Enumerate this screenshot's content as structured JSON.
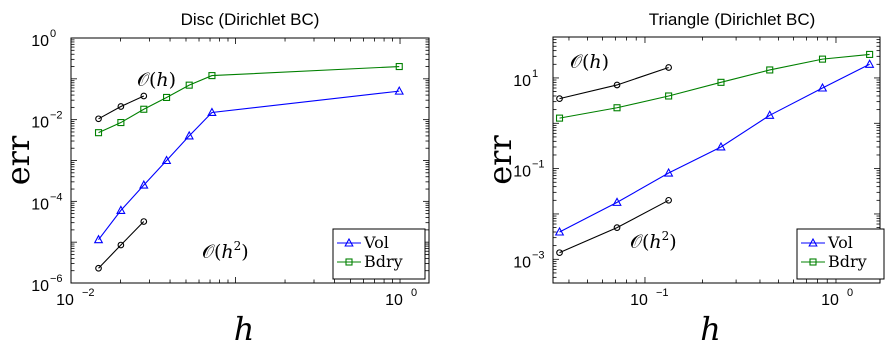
{
  "chart_data": [
    {
      "type": "line",
      "title": "Disc (Dirichlet BC)",
      "xlabel": "h",
      "ylabel": "err",
      "xscale": "log",
      "yscale": "log",
      "xlim": [
        0.01,
        1.5
      ],
      "ylim": [
        1e-06,
        1
      ],
      "x_ticks": [
        {
          "value": 0.01,
          "base": "10",
          "exp": "−2"
        },
        {
          "value": 1,
          "base": "10",
          "exp": "0"
        }
      ],
      "y_ticks": [
        {
          "value": 1e-06,
          "base": "10",
          "exp": "−6"
        },
        {
          "value": 0.0001,
          "base": "10",
          "exp": "−4"
        },
        {
          "value": 0.01,
          "base": "10",
          "exp": "−2"
        },
        {
          "value": 1,
          "base": "10",
          "exp": "0"
        }
      ],
      "series": [
        {
          "name": "Vol",
          "color": "#0000ff",
          "marker": "triangle",
          "x": [
            0.0147,
            0.0201,
            0.0277,
            0.0381,
            0.0523,
            0.0719,
            0.989
          ],
          "y": [
            1.15e-05,
            6e-05,
            0.00025,
            0.001,
            0.004,
            0.015,
            0.05
          ]
        },
        {
          "name": "Bdry",
          "color": "#008000",
          "marker": "square",
          "x": [
            0.0147,
            0.0201,
            0.0277,
            0.0381,
            0.0523,
            0.0719,
            0.989
          ],
          "y": [
            0.0048,
            0.0085,
            0.018,
            0.035,
            0.07,
            0.12,
            0.2
          ]
        },
        {
          "name": "",
          "color": "#000000",
          "marker": "circle",
          "x": [
            0.0147,
            0.0201,
            0.0277
          ],
          "y": [
            0.0105,
            0.021,
            0.038
          ]
        },
        {
          "name": "",
          "color": "#000000",
          "marker": "circle",
          "x": [
            0.0147,
            0.0201,
            0.0277
          ],
          "y": [
            2.3e-06,
            8.5e-06,
            3.2e-05
          ]
        }
      ],
      "x_fix": {
        "values": [
          0.0147,
          0.0201,
          0.0277,
          0.0381,
          0.0523,
          0.0719,
          0.989
        ]
      },
      "annotations": [
        {
          "prefix": "𝒪(",
          "var": "h",
          "sup": "",
          "suffix": ")"
        },
        {
          "prefix": "𝒪(",
          "var": "h",
          "sup": "2",
          "suffix": ")"
        }
      ],
      "legend": {
        "placement": "bottom-right",
        "entries": [
          "Vol",
          "Bdry"
        ]
      }
    },
    {
      "type": "line",
      "title": "Triangle (Dirichlet BC)",
      "xlabel": "h",
      "ylabel": "err",
      "xscale": "log",
      "yscale": "log",
      "xlim": [
        0.033,
        1.7
      ],
      "ylim": [
        0.0003,
        80
      ],
      "x_ticks": [
        {
          "value": 0.1,
          "base": "10",
          "exp": "−1"
        },
        {
          "value": 1,
          "base": "10",
          "exp": "0"
        }
      ],
      "y_ticks": [
        {
          "value": 0.001,
          "base": "10",
          "exp": "−3"
        },
        {
          "value": 0.1,
          "base": "10",
          "exp": "−1"
        },
        {
          "value": 10,
          "base": "10",
          "exp": "1"
        }
      ],
      "series": [
        {
          "name": "Vol",
          "color": "#0000ff",
          "marker": "triangle",
          "x": [
            0.0357,
            0.0714,
            0.133,
            0.25,
            0.45,
            0.85,
            1.5
          ],
          "y": [
            0.004,
            0.018,
            0.08,
            0.3,
            1.5,
            6,
            20
          ]
        },
        {
          "name": "Bdry",
          "color": "#008000",
          "marker": "square",
          "x": [
            0.0357,
            0.0714,
            0.133,
            0.25,
            0.45,
            0.85,
            1.5
          ],
          "y": [
            1.3,
            2.2,
            4,
            8,
            15,
            26,
            33
          ]
        },
        {
          "name": "",
          "color": "#000000",
          "marker": "circle",
          "x": [
            0.0357,
            0.0714,
            0.133
          ],
          "y": [
            3.5,
            7,
            17
          ]
        },
        {
          "name": "",
          "color": "#000000",
          "marker": "circle",
          "x": [
            0.0357,
            0.0714,
            0.133
          ],
          "y": [
            0.0014,
            0.005,
            0.02
          ]
        }
      ],
      "annotations": [
        {
          "prefix": "𝒪(",
          "var": "h",
          "sup": "",
          "suffix": ")"
        },
        {
          "prefix": "𝒪(",
          "var": "h",
          "sup": "2",
          "suffix": ")"
        }
      ],
      "legend": {
        "placement": "bottom-right",
        "entries": [
          "Vol",
          "Bdry"
        ]
      }
    }
  ]
}
